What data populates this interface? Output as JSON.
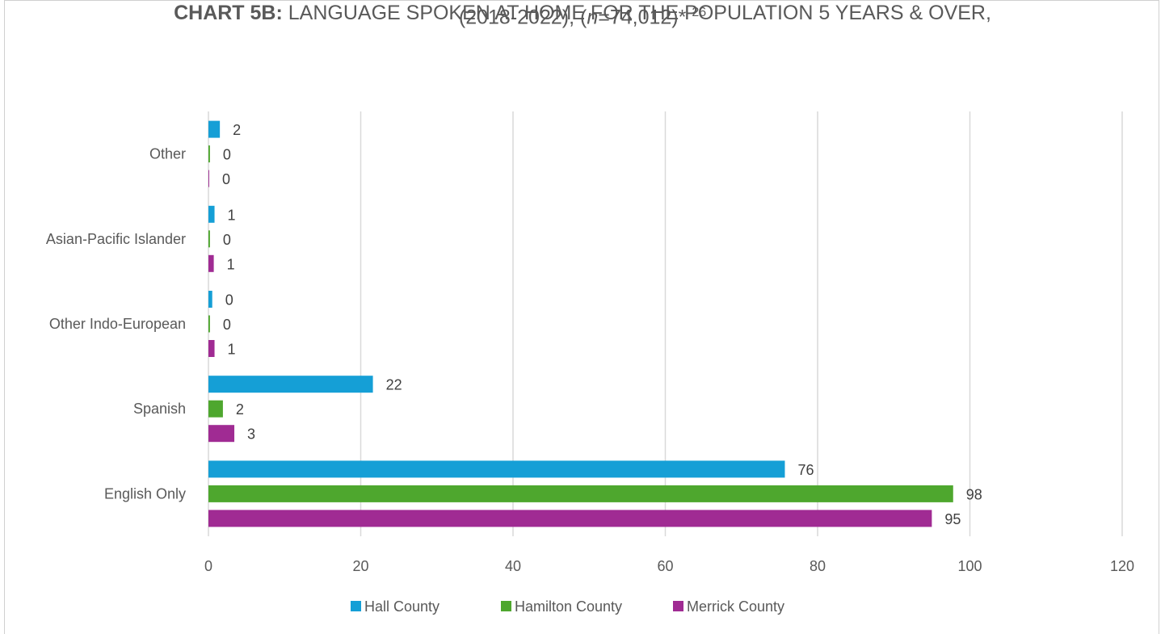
{
  "title": {
    "bold": "CHART 5B:",
    "line1": "LANGUAGE SPOKEN AT HOME FOR THE POPULATION 5 YEARS & OVER,",
    "line2_pre": "(2018-2022), (",
    "line2_italic": "n",
    "line2_post": "=74,012)*",
    "footnote": "26"
  },
  "chart_data": {
    "type": "bar",
    "orientation": "horizontal",
    "categories": [
      "English Only",
      "Spanish",
      "Other Indo-European",
      "Asian-Pacific Islander",
      "Other"
    ],
    "series": [
      {
        "name": "Hall County",
        "color": "#159fd6",
        "values": [
          75.7,
          21.6,
          0.5,
          0.8,
          1.5
        ],
        "labels": [
          "76",
          "22",
          "0",
          "1",
          "2"
        ]
      },
      {
        "name": "Hamilton County",
        "color": "#4ea72e",
        "values": [
          97.8,
          1.9,
          0.2,
          0.2,
          0.2
        ],
        "labels": [
          "98",
          "2",
          "0",
          "0",
          "0"
        ]
      },
      {
        "name": "Merrick County",
        "color": "#a02b93",
        "values": [
          95.0,
          3.4,
          0.8,
          0.7,
          0.1
        ],
        "labels": [
          "95",
          "3",
          "1",
          "1",
          "0"
        ]
      }
    ],
    "xlim": [
      0,
      120
    ],
    "xticks": [
      "0",
      "20",
      "40",
      "60",
      "80",
      "100",
      "120"
    ],
    "grid": true,
    "legend": "bottom"
  }
}
